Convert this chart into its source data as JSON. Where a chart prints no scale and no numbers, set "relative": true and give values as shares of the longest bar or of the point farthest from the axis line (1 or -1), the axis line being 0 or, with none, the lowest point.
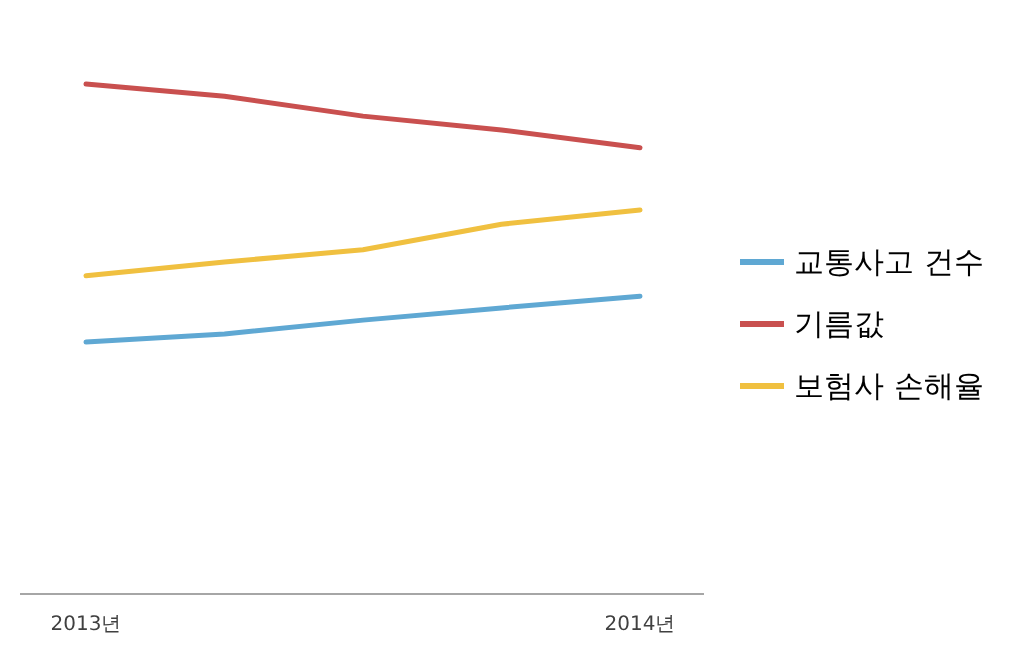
{
  "chart_data": {
    "type": "line",
    "relative": true,
    "categories": [
      "2013년",
      null,
      null,
      null,
      "2014년"
    ],
    "legend": "right",
    "marker": "none",
    "line_style": "solid",
    "series": [
      {
        "name": "교통사고 건수",
        "color": "#5fa8d3",
        "values": [
          0.494,
          0.51,
          0.537,
          0.561,
          0.584
        ]
      },
      {
        "name": "기름값",
        "color": "#c9504f",
        "values": [
          1,
          0.976,
          0.937,
          0.91,
          0.875
        ]
      },
      {
        "name": "보험사 손해율",
        "color": "#f0c040",
        "values": [
          0.624,
          0.651,
          0.675,
          0.725,
          0.753
        ]
      }
    ]
  }
}
